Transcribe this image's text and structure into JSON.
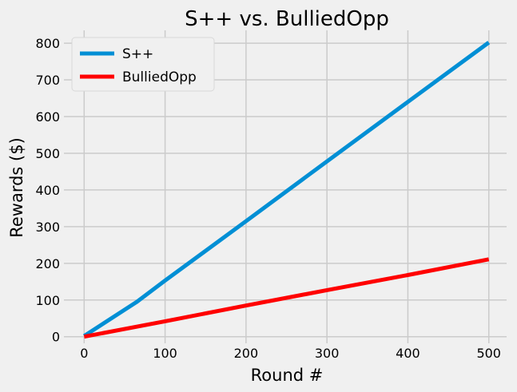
{
  "chart_data": {
    "type": "line",
    "title": "S++ vs. BulliedOpp",
    "xlabel": "Round #",
    "ylabel": "Rewards ($)",
    "xlim": [
      -25,
      522
    ],
    "ylim": [
      -18,
      835
    ],
    "xticks": [
      0,
      100,
      200,
      300,
      400,
      500
    ],
    "yticks": [
      0,
      100,
      200,
      300,
      400,
      500,
      600,
      700,
      800
    ],
    "xtick_labels": [
      "0",
      "100",
      "200",
      "300",
      "400",
      "500"
    ],
    "ytick_labels": [
      "0",
      "100",
      "200",
      "300",
      "400",
      "500",
      "600",
      "700",
      "800"
    ],
    "grid": true,
    "legend_position": "top-left",
    "series": [
      {
        "name": "S++",
        "color": "#008fd5",
        "x": [
          0,
          65,
          100,
          200,
          300,
          400,
          500
        ],
        "y": [
          2,
          95,
          153,
          315,
          478,
          640,
          802
        ]
      },
      {
        "name": "BulliedOpp",
        "color": "#ff0000",
        "x": [
          0,
          100,
          200,
          300,
          400,
          500
        ],
        "y": [
          0,
          42,
          85,
          127,
          168,
          211
        ]
      }
    ]
  }
}
